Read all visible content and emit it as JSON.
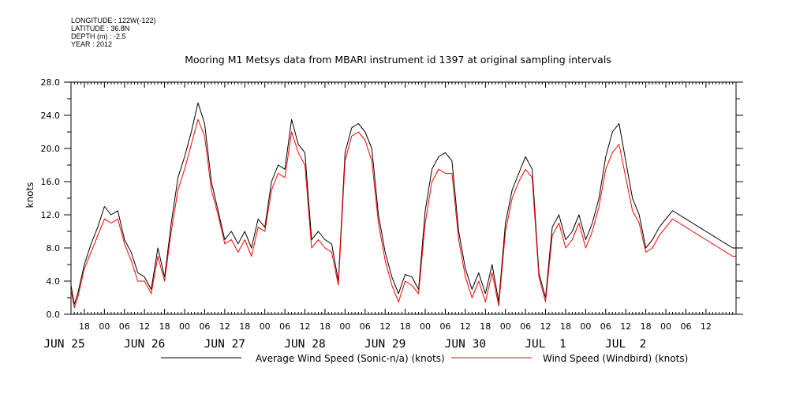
{
  "meta": {
    "longitude": "LONGITUDE : 122W(-122)",
    "latitude": "LATITUDE : 36.8N",
    "depth": "DEPTH (m) : -2.5",
    "year": "YEAR : 2012"
  },
  "chart_data": {
    "type": "line",
    "title": "Mooring M1 Metsys data from MBARI instrument id 1397 at original sampling intervals",
    "ylabel": "knots",
    "ylim": [
      0,
      28
    ],
    "yticks": [
      "0.0",
      "4.0",
      "8.0",
      "12.0",
      "16.0",
      "20.0",
      "24.0",
      "28.0"
    ],
    "xlim_hours": [
      14,
      213
    ],
    "hour_ticks": [
      {
        "hour": 18,
        "label": "18"
      },
      {
        "hour": 24,
        "label": "00"
      },
      {
        "hour": 30,
        "label": "06"
      },
      {
        "hour": 36,
        "label": "12"
      },
      {
        "hour": 42,
        "label": "18"
      },
      {
        "hour": 48,
        "label": "00"
      },
      {
        "hour": 54,
        "label": "06"
      },
      {
        "hour": 60,
        "label": "12"
      },
      {
        "hour": 66,
        "label": "18"
      },
      {
        "hour": 72,
        "label": "00"
      },
      {
        "hour": 78,
        "label": "06"
      },
      {
        "hour": 84,
        "label": "12"
      },
      {
        "hour": 90,
        "label": "18"
      },
      {
        "hour": 96,
        "label": "00"
      },
      {
        "hour": 102,
        "label": "06"
      },
      {
        "hour": 108,
        "label": "12"
      },
      {
        "hour": 114,
        "label": "18"
      },
      {
        "hour": 120,
        "label": "00"
      },
      {
        "hour": 126,
        "label": "06"
      },
      {
        "hour": 132,
        "label": "12"
      },
      {
        "hour": 138,
        "label": "18"
      },
      {
        "hour": 144,
        "label": "00"
      },
      {
        "hour": 150,
        "label": "06"
      },
      {
        "hour": 156,
        "label": "12"
      },
      {
        "hour": 162,
        "label": "18"
      },
      {
        "hour": 168,
        "label": "00"
      },
      {
        "hour": 174,
        "label": "06"
      },
      {
        "hour": 180,
        "label": "12"
      },
      {
        "hour": 186,
        "label": "18"
      },
      {
        "hour": 192,
        "label": "00"
      },
      {
        "hour": 198,
        "label": "06"
      },
      {
        "hour": 204,
        "label": "12"
      }
    ],
    "day_labels": [
      {
        "hour": 12,
        "label": "JUN 25"
      },
      {
        "hour": 36,
        "label": "JUN 26"
      },
      {
        "hour": 60,
        "label": "JUN 27"
      },
      {
        "hour": 84,
        "label": "JUN 28"
      },
      {
        "hour": 108,
        "label": "JUN 29"
      },
      {
        "hour": 132,
        "label": "JUN 30"
      },
      {
        "hour": 156,
        "label": "JUL  1"
      },
      {
        "hour": 180,
        "label": "JUL  2"
      }
    ],
    "series": [
      {
        "name": "Average Wind Speed (Sonic-n/a) (knots)",
        "color": "#000000",
        "x": [
          14,
          15,
          16,
          18,
          20,
          22,
          24,
          26,
          28,
          30,
          32,
          34,
          36,
          38,
          40,
          42,
          44,
          46,
          48,
          50,
          52,
          54,
          56,
          58,
          60,
          62,
          64,
          66,
          68,
          70,
          72,
          74,
          76,
          78,
          80,
          82,
          84,
          86,
          88,
          90,
          92,
          94,
          96,
          98,
          100,
          102,
          104,
          106,
          108,
          110,
          112,
          114,
          116,
          118,
          120,
          122,
          124,
          126,
          128,
          130,
          132,
          134,
          136,
          138,
          140,
          142,
          144,
          146,
          148,
          150,
          152,
          154,
          156,
          158,
          160,
          162,
          164,
          166,
          168,
          170,
          172,
          174,
          176,
          178,
          180,
          182,
          184,
          186,
          188,
          190,
          192,
          194,
          196,
          198,
          200,
          202,
          204,
          206,
          208,
          210,
          212,
          213
        ],
        "y": [
          3.5,
          1.2,
          2.5,
          6.0,
          8.5,
          10.5,
          13.0,
          12.0,
          12.5,
          9.0,
          7.5,
          5.0,
          4.5,
          3.0,
          8.0,
          4.5,
          11.0,
          16.5,
          19.0,
          22.0,
          25.5,
          23.0,
          16.0,
          12.5,
          9.0,
          10.0,
          8.5,
          10.0,
          8.0,
          11.5,
          10.5,
          16.0,
          18.0,
          17.5,
          23.5,
          20.5,
          19.5,
          9.0,
          10.0,
          9.0,
          8.5,
          4.0,
          19.5,
          22.5,
          23.0,
          22.0,
          20.0,
          12.0,
          7.5,
          4.5,
          2.5,
          4.8,
          4.5,
          3.0,
          12.5,
          17.5,
          19.0,
          19.5,
          18.5,
          10.0,
          5.5,
          3.0,
          5.0,
          2.5,
          6.0,
          1.5,
          11.0,
          15.0,
          17.0,
          19.0,
          17.5,
          5.0,
          2.0,
          10.5,
          12.0,
          9.0,
          10.0,
          12.0,
          9.0,
          11.0,
          14.0,
          19.0,
          22.0,
          23.0,
          18.5,
          14.0,
          12.0,
          8.0,
          9.0,
          10.5,
          11.5,
          12.5,
          12.0,
          11.5,
          11.0,
          10.5,
          10.0,
          9.5,
          9.0,
          8.5,
          8.0,
          8.0
        ],
        "x_note": ""
      },
      {
        "name": "Wind Speed (Windbird) (knots)",
        "color": "#ff0000",
        "x": [
          14,
          15,
          16,
          18,
          20,
          22,
          24,
          26,
          28,
          30,
          32,
          34,
          36,
          38,
          40,
          42,
          44,
          46,
          48,
          50,
          52,
          54,
          56,
          58,
          60,
          62,
          64,
          66,
          68,
          70,
          72,
          74,
          76,
          78,
          80,
          82,
          84,
          86,
          88,
          90,
          92,
          94,
          96,
          98,
          100,
          102,
          104,
          106,
          108,
          110,
          112,
          114,
          116,
          118,
          120,
          122,
          124,
          126,
          128,
          130,
          132,
          134,
          136,
          138,
          140,
          142,
          144,
          146,
          148,
          150,
          152,
          154,
          156,
          158,
          160,
          162,
          164,
          166,
          168,
          170,
          172,
          174,
          176,
          178,
          180,
          182,
          184,
          186,
          188,
          190,
          192,
          194,
          196,
          198,
          200,
          202,
          204,
          206,
          208,
          210,
          212,
          213
        ],
        "y": [
          3.0,
          0.8,
          2.0,
          5.5,
          7.5,
          9.5,
          11.5,
          11.0,
          11.5,
          8.5,
          6.5,
          4.0,
          4.0,
          2.5,
          7.0,
          4.0,
          10.0,
          15.0,
          17.5,
          20.5,
          23.5,
          21.5,
          15.0,
          12.0,
          8.5,
          9.0,
          7.5,
          9.0,
          7.0,
          10.5,
          10.0,
          15.0,
          17.0,
          16.5,
          22.0,
          19.5,
          18.0,
          8.0,
          9.0,
          8.0,
          7.5,
          3.5,
          18.5,
          21.5,
          22.0,
          21.0,
          18.5,
          11.0,
          6.5,
          3.5,
          1.5,
          4.0,
          3.5,
          2.5,
          11.0,
          16.0,
          17.5,
          17.0,
          17.0,
          9.0,
          4.5,
          2.0,
          4.0,
          1.5,
          5.0,
          1.0,
          10.0,
          14.0,
          16.0,
          17.5,
          16.5,
          4.5,
          1.5,
          9.5,
          11.0,
          8.0,
          9.0,
          11.0,
          8.0,
          10.0,
          13.0,
          17.5,
          19.5,
          20.5,
          16.5,
          12.5,
          11.0,
          7.5,
          8.0,
          9.5,
          10.5,
          11.5,
          11.0,
          10.5,
          10.0,
          9.5,
          9.0,
          8.5,
          8.0,
          7.5,
          7.0,
          7.0
        ],
        "x_note": ""
      }
    ],
    "legend": {
      "position": "bottom",
      "entries": [
        "Average Wind Speed (Sonic-n/a) (knots)",
        "Wind Speed (Windbird) (knots)"
      ]
    },
    "grid": false
  }
}
